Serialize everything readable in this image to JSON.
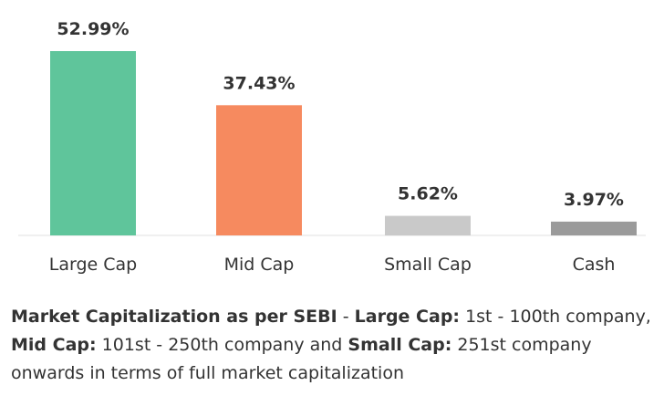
{
  "chart_data": {
    "type": "bar",
    "categories": [
      "Large Cap",
      "Mid Cap",
      "Small Cap",
      "Cash"
    ],
    "values": [
      52.99,
      37.43,
      5.62,
      3.97
    ],
    "value_labels": [
      "52.99%",
      "37.43%",
      "5.62%",
      "3.97%"
    ],
    "colors": [
      "#5fc59b",
      "#f68a5f",
      "#c9c9c9",
      "#9a9a9a"
    ],
    "ylim": [
      0,
      52.99
    ],
    "grid": false,
    "legend": "none"
  },
  "footnote": {
    "heading": "Market Capitalization as per SEBI",
    "sep": " - ",
    "large_label": "Large Cap:",
    "large_text": " 1st - 100th company, ",
    "mid_label": "Mid Cap:",
    "mid_text": " 101st - 250th company and ",
    "small_label": "Small Cap:",
    "small_text": " 251st company onwards in terms of full market capitalization"
  }
}
